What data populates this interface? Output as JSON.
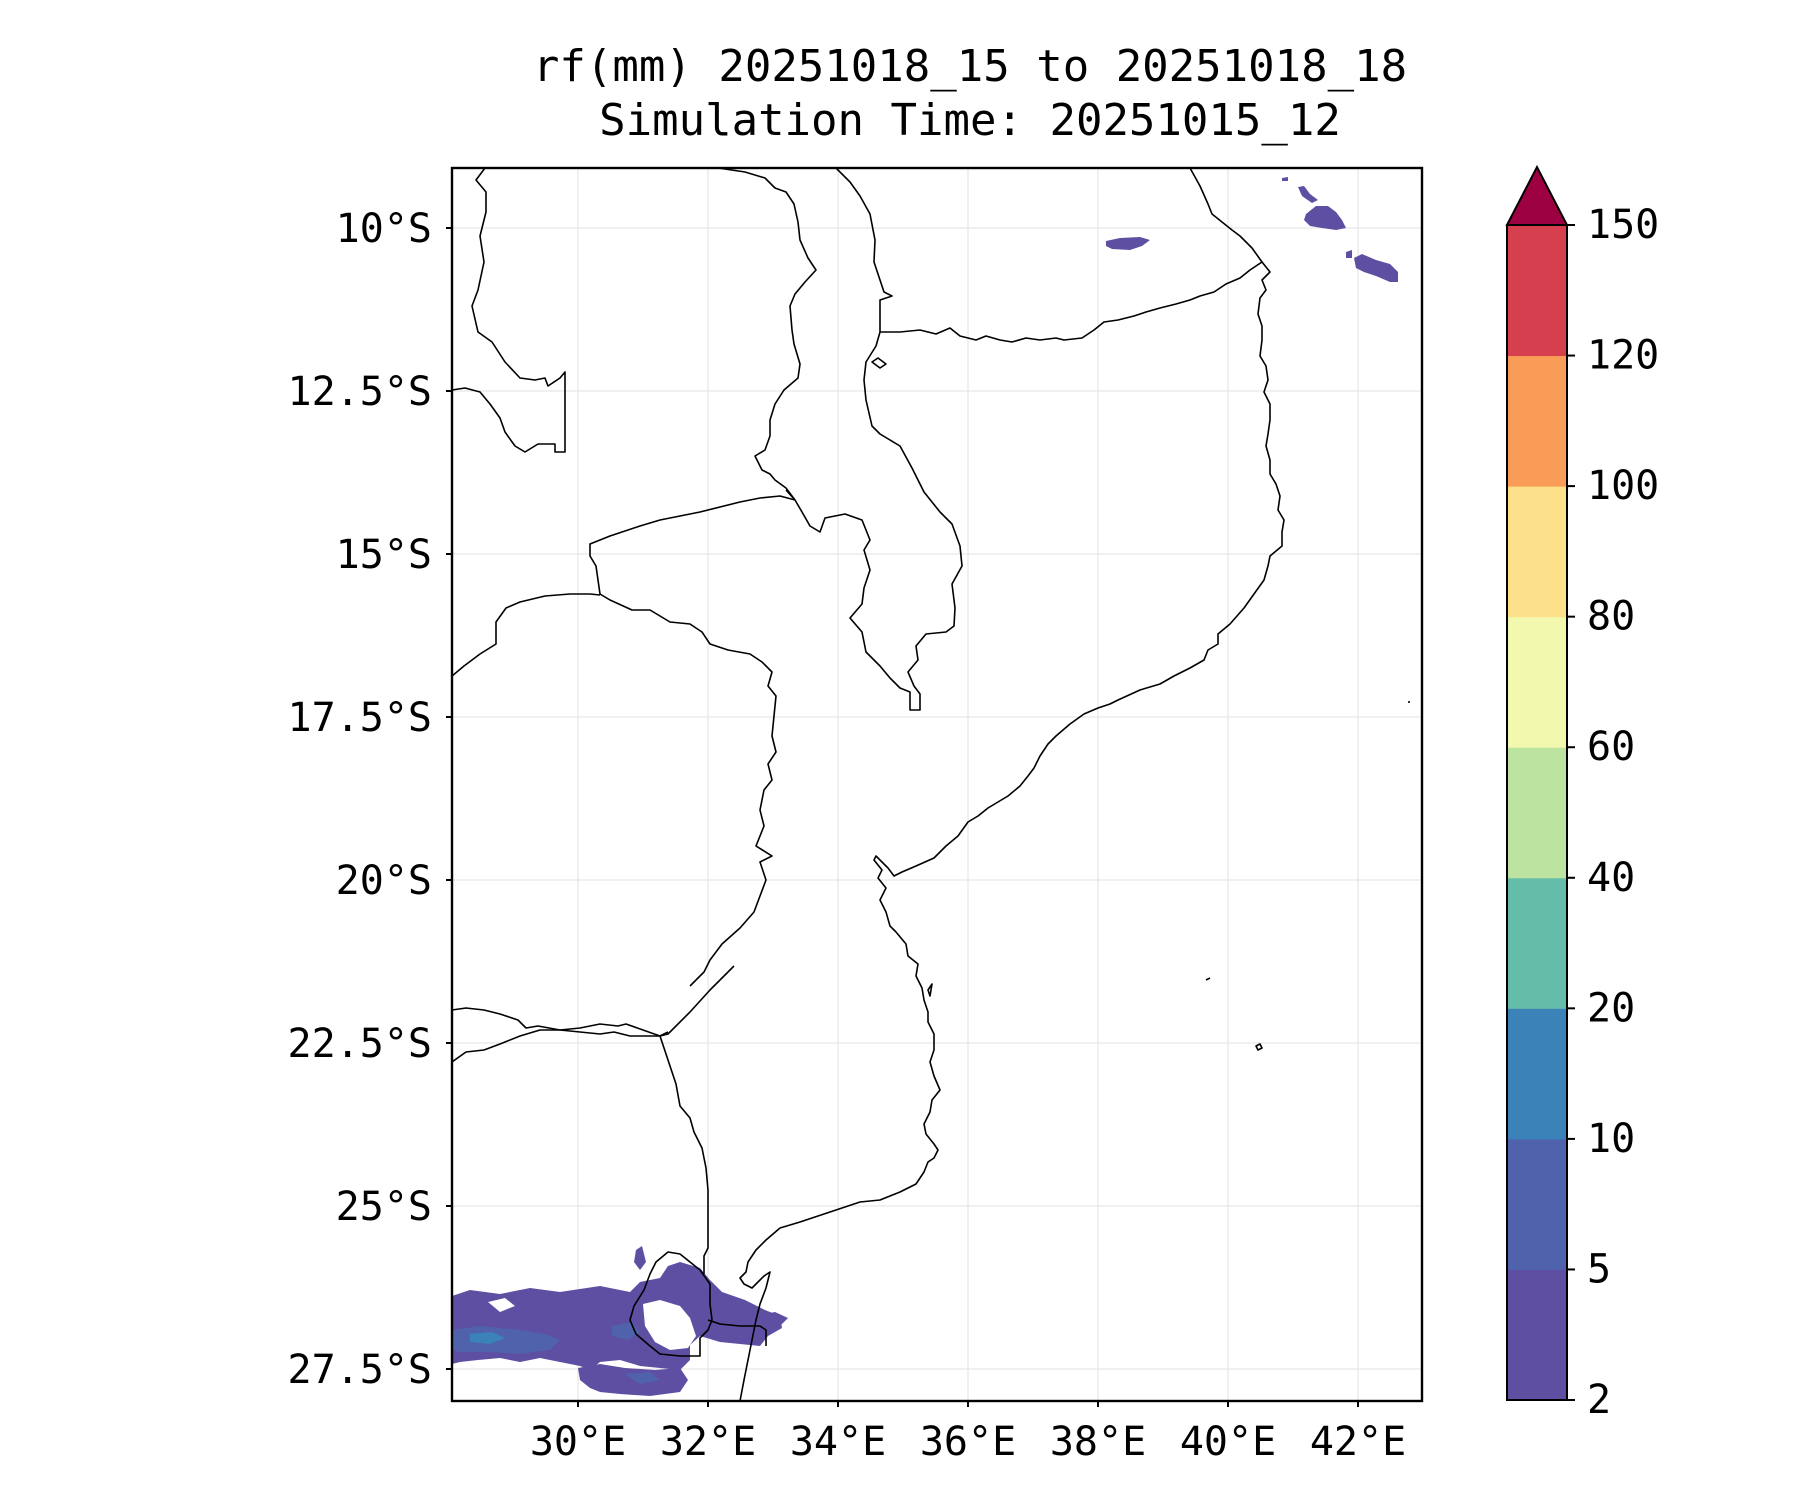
{
  "title": {
    "line1": "rf(mm) 20251018_15 to 20251018_18",
    "line2": "Simulation Time: 20251015_12"
  },
  "map": {
    "lat_ticks": [
      "10°S",
      "12.5°S",
      "15°S",
      "17.5°S",
      "20°S",
      "22.5°S",
      "25°S",
      "27.5°S"
    ],
    "lon_ticks": [
      "30°E",
      "32°E",
      "34°E",
      "36°E",
      "38°E",
      "40°E",
      "42°E"
    ],
    "lon_range": [
      28.1,
      43.0
    ],
    "lat_range": [
      -28.4,
      -9.5
    ],
    "grid": true
  },
  "colorbar": {
    "ticks": [
      "2",
      "5",
      "10",
      "20",
      "40",
      "60",
      "80",
      "100",
      "120",
      "150"
    ],
    "colors": [
      "#5e4fa2",
      "#4f62ab",
      "#3b82b9",
      "#63bda9",
      "#bde3a1",
      "#f2f8ad",
      "#fce08a",
      "#f99c58",
      "#d6404e",
      "#9e0142"
    ],
    "extend": "max"
  }
}
